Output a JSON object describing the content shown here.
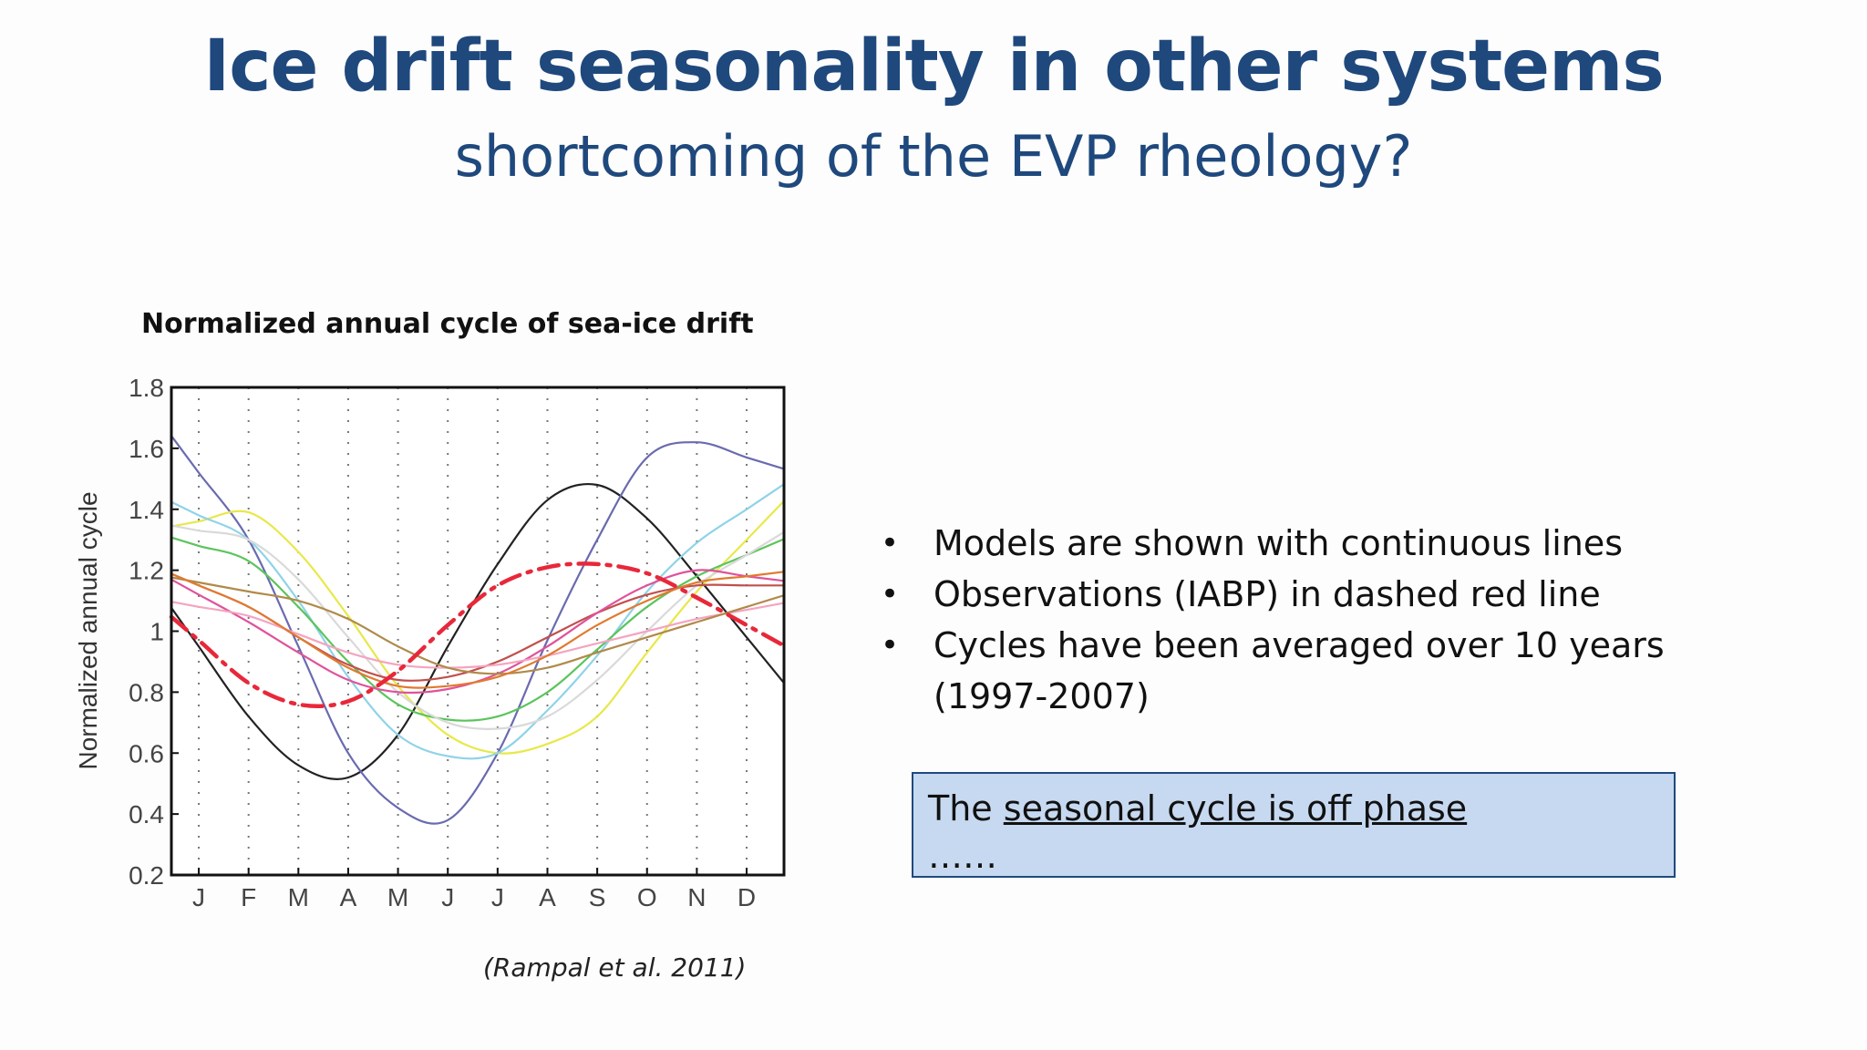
{
  "slide": {
    "title": "Ice drift seasonality in other systems",
    "subtitle": "shortcoming of the EVP rheology?",
    "figure_title": "Normalized annual cycle of sea-ice drift",
    "citation": "(Rampal et al. 2011)",
    "bullets": [
      "Models are shown with continuous lines",
      "Observations (IABP) in dashed red line",
      "Cycles have been averaged over 10 years (1997-2007)"
    ],
    "callout": {
      "prefix": "The ",
      "underlined": "seasonal cycle is off phase",
      "second_line": "……"
    }
  },
  "chart_data": {
    "type": "line",
    "title": "",
    "xlabel": "",
    "ylabel": "Normalized annual cycle",
    "categories": [
      "J",
      "F",
      "M",
      "A",
      "M",
      "J",
      "J",
      "A",
      "S",
      "O",
      "N",
      "D"
    ],
    "ylim": [
      0.2,
      1.8
    ],
    "yticks": [
      "0.2",
      "0.4",
      "0.6",
      "0.8",
      "1",
      "1.2",
      "1.4",
      "1.6",
      "1.8"
    ],
    "grid": "vertical dotted",
    "series": [
      {
        "color": "#222222",
        "style": "solid",
        "values": [
          0.95,
          0.72,
          0.56,
          0.52,
          0.66,
          0.95,
          1.22,
          1.43,
          1.48,
          1.37,
          1.18,
          0.98
        ]
      },
      {
        "color": "#6a6ab0",
        "style": "solid",
        "values": [
          1.52,
          1.3,
          0.95,
          0.6,
          0.42,
          0.38,
          0.6,
          0.97,
          1.3,
          1.57,
          1.62,
          1.57
        ]
      },
      {
        "color": "#e8e84a",
        "style": "solid",
        "values": [
          1.36,
          1.39,
          1.26,
          1.05,
          0.82,
          0.66,
          0.6,
          0.63,
          0.72,
          0.93,
          1.13,
          1.3
        ]
      },
      {
        "color": "#8fd3e8",
        "style": "solid",
        "values": [
          1.38,
          1.3,
          1.1,
          0.85,
          0.66,
          0.59,
          0.6,
          0.74,
          0.92,
          1.13,
          1.29,
          1.4
        ]
      },
      {
        "color": "#5cc45c",
        "style": "solid",
        "values": [
          1.28,
          1.23,
          1.08,
          0.9,
          0.76,
          0.71,
          0.72,
          0.8,
          0.94,
          1.08,
          1.18,
          1.25
        ]
      },
      {
        "color": "#d9d9d9",
        "style": "solid",
        "values": [
          1.33,
          1.3,
          1.17,
          0.98,
          0.8,
          0.7,
          0.68,
          0.72,
          0.84,
          1.0,
          1.15,
          1.25
        ]
      },
      {
        "color": "#c0504d",
        "style": "solid",
        "values": [
          1.15,
          1.08,
          0.98,
          0.89,
          0.84,
          0.85,
          0.9,
          0.98,
          1.06,
          1.12,
          1.15,
          1.15
        ]
      },
      {
        "color": "#e0529a",
        "style": "solid",
        "values": [
          1.12,
          1.03,
          0.93,
          0.84,
          0.8,
          0.81,
          0.86,
          0.95,
          1.06,
          1.15,
          1.2,
          1.18
        ]
      },
      {
        "color": "#f4a4c0",
        "style": "solid",
        "values": [
          1.08,
          1.05,
          0.99,
          0.93,
          0.89,
          0.88,
          0.89,
          0.92,
          0.96,
          1.0,
          1.04,
          1.07
        ]
      },
      {
        "color": "#b08a4a",
        "style": "solid",
        "values": [
          1.16,
          1.13,
          1.1,
          1.04,
          0.95,
          0.88,
          0.86,
          0.88,
          0.93,
          0.98,
          1.03,
          1.08
        ]
      },
      {
        "color": "#e07a30",
        "style": "solid",
        "values": [
          1.15,
          1.08,
          0.98,
          0.88,
          0.82,
          0.82,
          0.85,
          0.92,
          1.02,
          1.1,
          1.16,
          1.18
        ]
      },
      {
        "color": "#e8283a",
        "style": "dashdot",
        "width": 4.5,
        "values": [
          0.97,
          0.83,
          0.76,
          0.77,
          0.87,
          1.02,
          1.15,
          1.21,
          1.22,
          1.19,
          1.11,
          1.02
        ]
      }
    ]
  }
}
